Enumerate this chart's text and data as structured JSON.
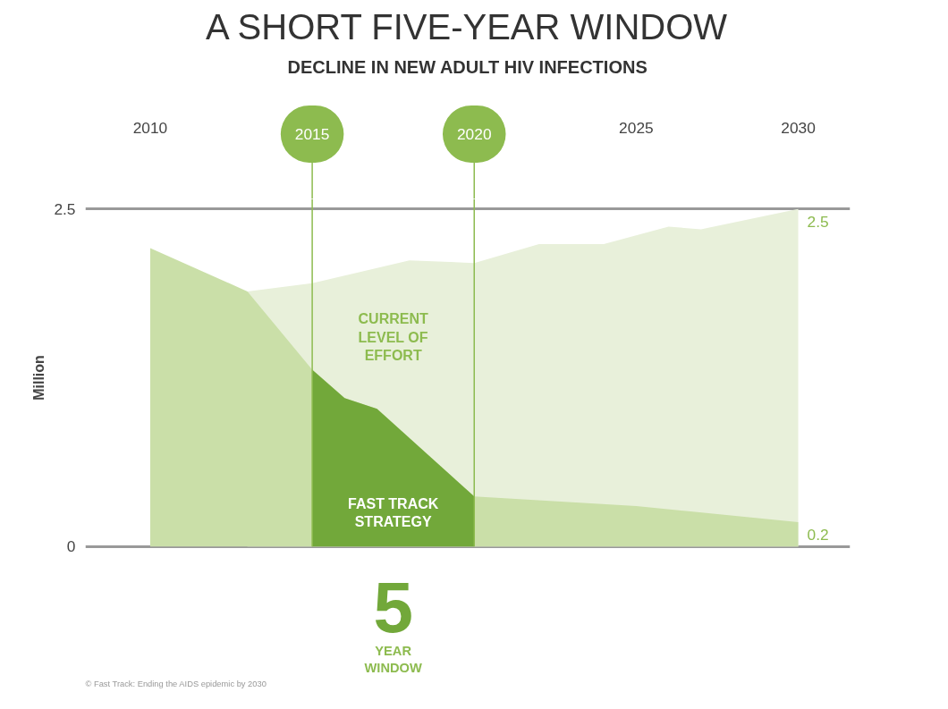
{
  "chart_data": {
    "type": "area",
    "title": "A SHORT FIVE-YEAR WINDOW",
    "subtitle": "DECLINE IN NEW ADULT HIV INFECTIONS",
    "ylabel": "Million",
    "xlim": [
      2008,
      2031.6
    ],
    "xticks": [
      2010,
      2025,
      2030
    ],
    "ylim": [
      0,
      2.5
    ],
    "yticks": [
      0,
      2.5
    ],
    "grid": "y",
    "series": [
      {
        "color": "#e8f0da",
        "x": [
          2013,
          2015,
          2018,
          2020,
          2022,
          2024,
          2026,
          2027,
          2030
        ],
        "values": [
          1.89,
          1.95,
          2.12,
          2.1,
          2.24,
          2.24,
          2.37,
          2.35,
          2.5
        ]
      },
      {
        "color": "#cadfa8",
        "x": [
          2010,
          2013,
          2015,
          2016,
          2017,
          2020,
          2025,
          2030
        ],
        "values": [
          2.21,
          1.89,
          1.31,
          1.1,
          1.02,
          0.37,
          0.3,
          0.18
        ]
      },
      {
        "color": "#72a83a",
        "x": [
          2015,
          2016,
          2017,
          2020
        ],
        "values": [
          1.31,
          1.1,
          1.02,
          0.37
        ]
      }
    ],
    "ref_lines": [
      {
        "axis": "x",
        "value": 2015,
        "label": "2015",
        "color": "#8dbb4f"
      },
      {
        "axis": "x",
        "value": 2020,
        "label": "2020",
        "color": "#8dbb4f"
      }
    ],
    "annotations": [
      "CURRENT\nLEVEL OF\nEFFORT",
      "FAST TRACK\nSTRATEGY",
      {
        "text": "2.5",
        "x": 2030,
        "y": 2.5
      },
      {
        "text": "0.2",
        "x": 2030,
        "y": 0.18
      },
      "5",
      "YEAR\nWINDOW",
      "© Fast Track: Ending the AIDS epidemic by 2030"
    ]
  }
}
